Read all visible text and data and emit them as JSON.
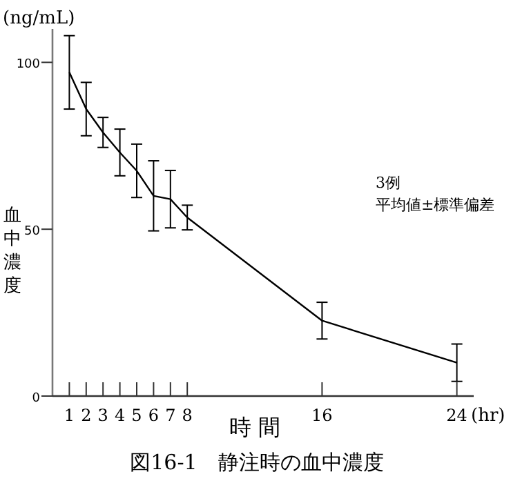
{
  "chart_data": {
    "type": "line",
    "title": "図16-1　静注時の血中濃度",
    "xlabel": "時 間",
    "ylabel": "血中濃度",
    "annotations": [
      "(ng/mL)",
      "(hr)",
      "3例",
      "平均値±標準偏差"
    ],
    "x": [
      1,
      2,
      3,
      4,
      5,
      6,
      7,
      8,
      16,
      24
    ],
    "series": [
      {
        "color": "#000000",
        "values": [
          97,
          86,
          79,
          73,
          67.5,
          60,
          59,
          53.5,
          22.6,
          10
        ],
        "errors": [
          11,
          8,
          4.5,
          7,
          8,
          10.5,
          8.6,
          3.7,
          5.5,
          5.6
        ]
      }
    ],
    "xlim": [
      0,
      25
    ],
    "xticks": [
      1,
      2,
      3,
      4,
      5,
      6,
      7,
      8,
      16,
      24
    ],
    "ylim": [
      0,
      110
    ],
    "yticks": [
      0,
      50,
      100
    ],
    "grid": false,
    "marker": "none",
    "line_style": "solid"
  }
}
